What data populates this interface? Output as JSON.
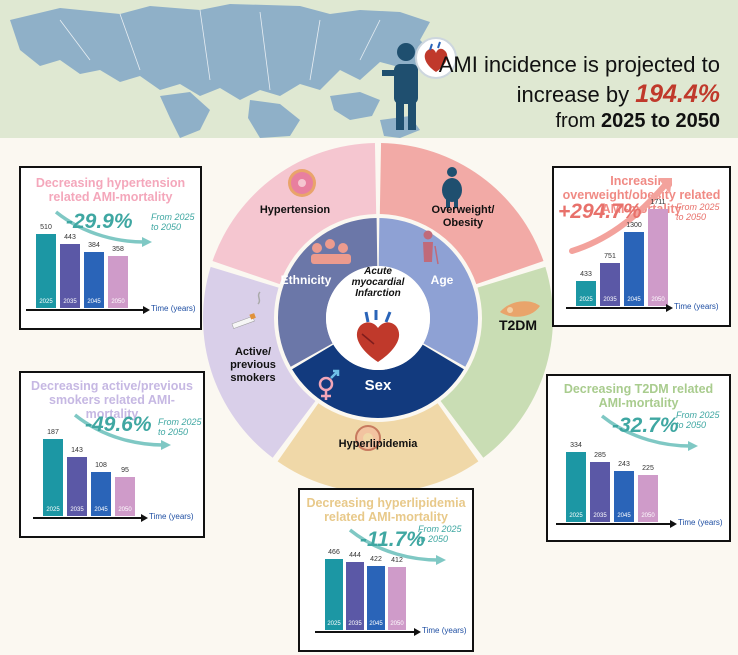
{
  "header": {
    "line1": "AMI incidence is projected to",
    "line2_prefix": "increase by ",
    "line2_value": "194.4%",
    "line3_prefix": "from ",
    "line3_bold": "2025 to 2050",
    "colors": {
      "value": "#c0392b"
    }
  },
  "wheel": {
    "center_label": "Acute myocardial Infarction",
    "outer_segments": [
      {
        "label": "Hypertension",
        "color": "#f5c6d0"
      },
      {
        "label": "Overweight/ Obesity",
        "color": "#f2aaa6"
      },
      {
        "label": "T2DM",
        "color": "#c9ddb4"
      },
      {
        "label": "Hyperlipidemia",
        "color": "#f0d8a8"
      },
      {
        "label": "Active/ previous smokers",
        "color": "#d9cfe9"
      }
    ],
    "inner_segments": [
      {
        "label": "Ethnicity",
        "color": "#6b77a8"
      },
      {
        "label": "Age",
        "color": "#8ea1d4"
      },
      {
        "label": "Sex",
        "color": "#123a7e"
      }
    ]
  },
  "panels": [
    {
      "id": "hypertension",
      "title": "Decreasing hypertension related AMI-mortality",
      "change": "-29.9%",
      "from": "From 2025 to 2050",
      "title_color": "#f4a7bb",
      "change_color": "#3fa7a2",
      "axis_label": "Time (years)",
      "chart_data": {
        "type": "bar",
        "categories": [
          "2025",
          "2035",
          "2045",
          "2050"
        ],
        "values": [
          510,
          443,
          384,
          358
        ],
        "xlabel": "Time (years)"
      }
    },
    {
      "id": "obesity",
      "title": "Increasing overweight/obesity related AMI-mortality",
      "change": "+294.7%",
      "from": "From 2025 to 2050",
      "title_color": "#f08a84",
      "change_color": "#e8716b",
      "axis_label": "Time (years)",
      "chart_data": {
        "type": "bar",
        "categories": [
          "2025",
          "2035",
          "2045",
          "2050"
        ],
        "values": [
          433,
          751,
          1300,
          1711
        ],
        "xlabel": "Time (years)"
      }
    },
    {
      "id": "smokers",
      "title": "Decreasing active/previous smokers related AMI-mortality",
      "change": "-49.6%",
      "from": "From 2025 to 2050",
      "title_color": "#c6b8e3",
      "change_color": "#3fa7a2",
      "axis_label": "Time (years)",
      "chart_data": {
        "type": "bar",
        "categories": [
          "2025",
          "2035",
          "2045",
          "2050"
        ],
        "values": [
          187,
          143,
          108,
          95
        ],
        "xlabel": "Time (years)"
      }
    },
    {
      "id": "t2dm",
      "title": "Decreasing T2DM related AMI-mortality",
      "change": "-32.7%",
      "from": "From 2025 to 2050",
      "title_color": "#a9cc8e",
      "change_color": "#3fa7a2",
      "axis_label": "Time (years)",
      "chart_data": {
        "type": "bar",
        "categories": [
          "2025",
          "2035",
          "2045",
          "2050"
        ],
        "values": [
          334,
          285,
          243,
          225
        ],
        "xlabel": "Time (years)"
      }
    },
    {
      "id": "hyperlipidemia",
      "title": "Decreasing hyperlipidemia related AMI-mortality",
      "change": "-11.7%",
      "from": "From 2025 to 2050",
      "title_color": "#e8c98a",
      "change_color": "#3fa7a2",
      "axis_label": "Time (years)",
      "chart_data": {
        "type": "bar",
        "categories": [
          "2025",
          "2035",
          "2045",
          "2050"
        ],
        "values": [
          466,
          444,
          422,
          412
        ],
        "xlabel": "Time (years)"
      }
    }
  ],
  "bar_colors": [
    "#1c97a4",
    "#5b58a6",
    "#2a64b8",
    "#cf9bc9"
  ]
}
